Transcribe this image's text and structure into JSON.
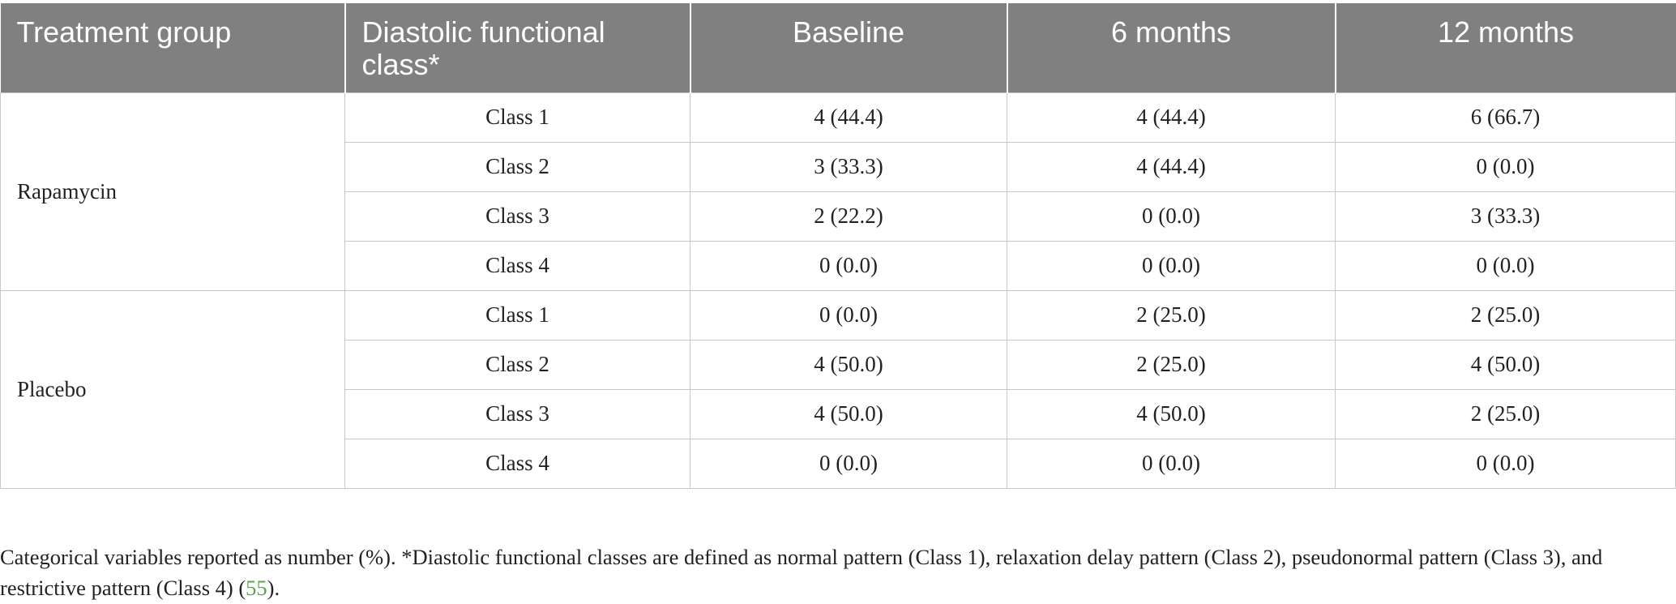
{
  "table": {
    "headers": [
      "Treatment group",
      "Diastolic functional class*",
      "Baseline",
      "6 months",
      "12 months"
    ],
    "groups": [
      {
        "name": "Rapamycin",
        "rows": [
          {
            "class": "Class 1",
            "baseline": "4 (44.4)",
            "m6": "4 (44.4)",
            "m12": "6 (66.7)"
          },
          {
            "class": "Class 2",
            "baseline": "3 (33.3)",
            "m6": "4 (44.4)",
            "m12": "0 (0.0)"
          },
          {
            "class": "Class 3",
            "baseline": "2 (22.2)",
            "m6": "0 (0.0)",
            "m12": "3 (33.3)"
          },
          {
            "class": "Class 4",
            "baseline": "0 (0.0)",
            "m6": "0 (0.0)",
            "m12": "0 (0.0)"
          }
        ]
      },
      {
        "name": "Placebo",
        "rows": [
          {
            "class": "Class 1",
            "baseline": "0 (0.0)",
            "m6": "2 (25.0)",
            "m12": "2 (25.0)"
          },
          {
            "class": "Class 2",
            "baseline": "4 (50.0)",
            "m6": "2 (25.0)",
            "m12": "4 (50.0)"
          },
          {
            "class": "Class 3",
            "baseline": "4 (50.0)",
            "m6": "4 (50.0)",
            "m12": "2 (25.0)"
          },
          {
            "class": "Class 4",
            "baseline": "0 (0.0)",
            "m6": "0 (0.0)",
            "m12": "0 (0.0)"
          }
        ]
      }
    ]
  },
  "footnote": {
    "text": "Categorical variables reported as number (%). *Diastolic functional classes are defined as normal pattern (Class 1), relaxation delay pattern (Class 2), pseudonormal pattern (Class 3), and restrictive pattern (Class 4) (",
    "ref": "55",
    "tail": ")."
  },
  "colors": {
    "header_bg": "#7f807f",
    "header_text": "#ffffff",
    "grid": "#c8c8c8",
    "ref_link": "#5aa54a"
  }
}
